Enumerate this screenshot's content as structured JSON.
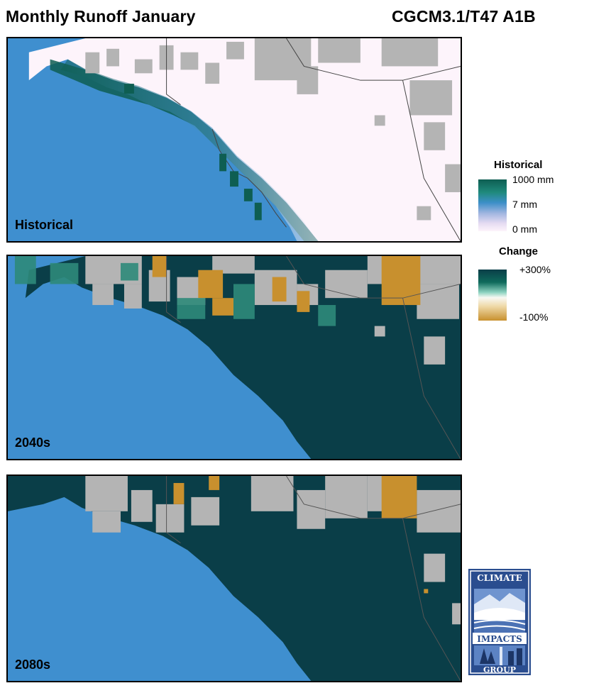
{
  "header": {
    "title": "Monthly Runoff January",
    "model": "CGCM3.1/T47 A1B"
  },
  "panels": [
    {
      "label": "Historical"
    },
    {
      "label": "2040s"
    },
    {
      "label": "2080s"
    }
  ],
  "legend": {
    "historical": {
      "title": "Historical",
      "ticks": [
        "1000 mm",
        "7 mm",
        "0 mm"
      ]
    },
    "change": {
      "title": "Change",
      "ticks": [
        "+300%",
        "-100%"
      ]
    }
  },
  "colors": {
    "ocean": "#3f8fcf",
    "nodata": "#b4b4b4",
    "low_runoff": "#fdf4fb",
    "high_runoff": "#0e5e52",
    "large_increase": "#0a3e48",
    "decrease": "#c8902e"
  },
  "logo": {
    "line1": "CLIMATE",
    "line2": "IMPACTS",
    "line3": "GROUP"
  }
}
